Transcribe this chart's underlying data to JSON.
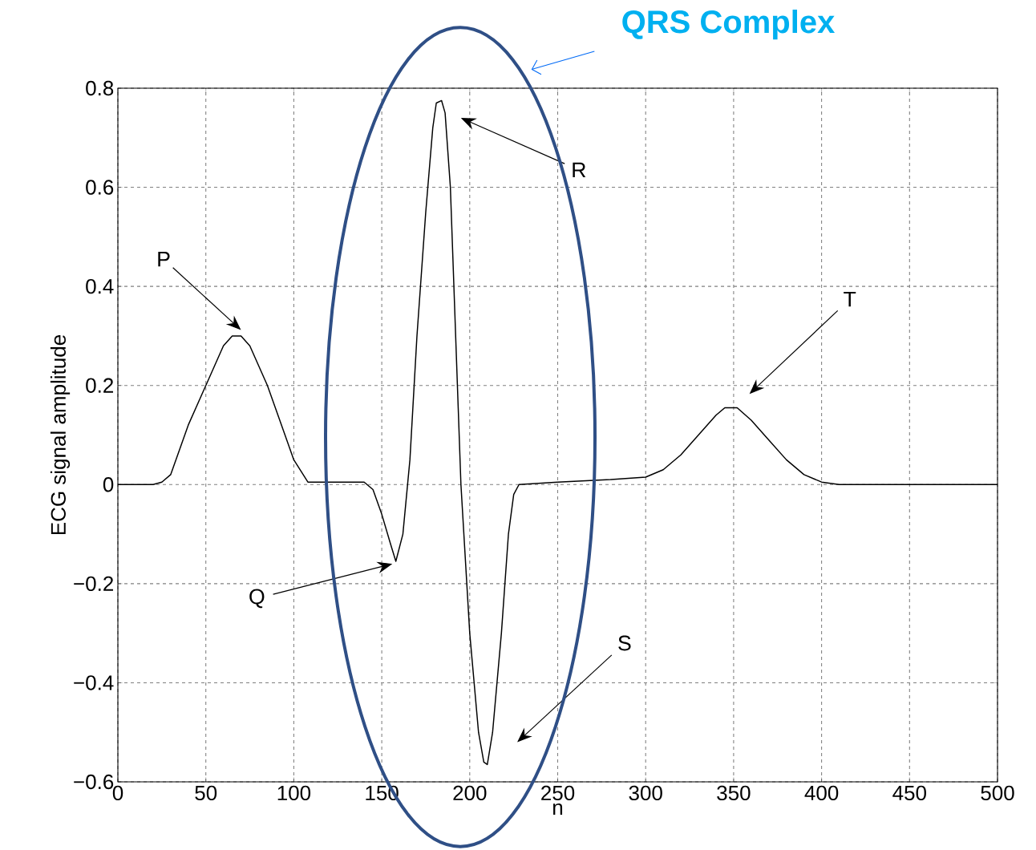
{
  "chart_data": {
    "type": "line",
    "xlabel": "n",
    "ylabel": "ECG signal amplitude",
    "color": "#000000",
    "x": [
      0,
      20,
      25,
      30,
      40,
      50,
      60,
      65,
      70,
      75,
      85,
      95,
      100,
      108,
      120,
      140,
      145,
      150,
      155,
      158,
      162,
      166,
      170,
      175,
      179,
      181,
      184,
      186,
      189,
      192,
      195,
      200,
      205,
      208,
      210,
      213,
      218,
      222,
      225,
      228,
      250,
      280,
      300,
      310,
      320,
      330,
      340,
      345,
      352,
      360,
      370,
      380,
      390,
      400,
      410,
      500
    ],
    "values": [
      0,
      0,
      0.005,
      0.02,
      0.12,
      0.2,
      0.28,
      0.3,
      0.3,
      0.28,
      0.2,
      0.1,
      0.05,
      0.005,
      0.005,
      0.005,
      -0.01,
      -0.06,
      -0.12,
      -0.155,
      -0.1,
      0.05,
      0.3,
      0.55,
      0.72,
      0.77,
      0.775,
      0.75,
      0.6,
      0.3,
      0.0,
      -0.3,
      -0.5,
      -0.56,
      -0.565,
      -0.5,
      -0.3,
      -0.1,
      -0.02,
      0.0,
      0.005,
      0.01,
      0.015,
      0.03,
      0.06,
      0.1,
      0.14,
      0.155,
      0.155,
      0.13,
      0.09,
      0.05,
      0.02,
      0.005,
      0.0,
      0.0
    ],
    "xlim": [
      0,
      500
    ],
    "ylim": [
      -0.6,
      0.8
    ],
    "xticks": [
      0,
      50,
      100,
      150,
      200,
      250,
      300,
      350,
      400,
      450,
      500
    ],
    "yticks": [
      {
        "value": -0.6,
        "label": "−0.6"
      },
      {
        "value": -0.4,
        "label": "−0.4"
      },
      {
        "value": -0.2,
        "label": "−0.2"
      },
      0,
      0.2,
      0.4,
      0.6,
      0.8
    ],
    "grid": true,
    "annotations": [
      "P",
      "Q",
      "R",
      "S",
      "T",
      "QRS Complex"
    ]
  }
}
